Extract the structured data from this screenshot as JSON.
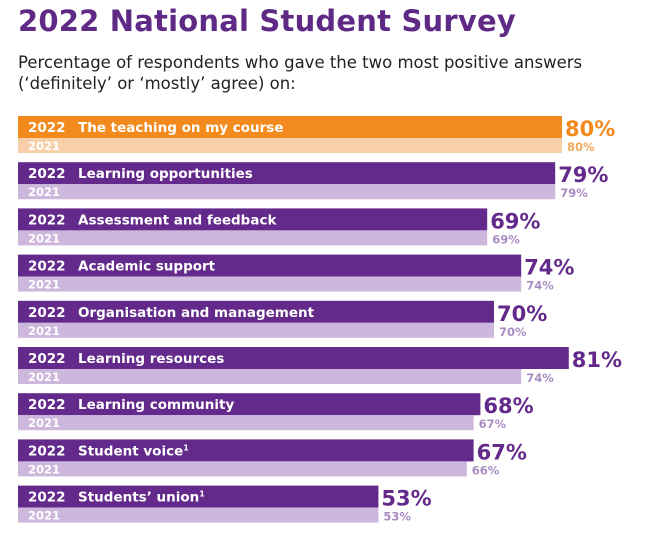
{
  "title": "2022 National Student Survey",
  "subtitle": "Percentage of respondents who gave the two most positive answers (‘definitely’ or ‘mostly’ agree) on:",
  "colors": {
    "bar_2022": "#632a8b",
    "bar_2021": "#cdb7dc",
    "label_2021": "#a98dc2",
    "highlight_2022": "#f28a1d",
    "highlight_2021": "#f7d0aa",
    "highlight_label_2021": "#f2a95c",
    "title": "#5f2a86"
  },
  "chart_data": {
    "type": "bar",
    "orientation": "horizontal",
    "xlim": [
      0,
      100
    ],
    "categories": [
      "The teaching on my course",
      "Learning opportunities",
      "Assessment and feedback",
      "Academic support",
      "Organisation and management",
      "Learning resources",
      "Learning community",
      "Student voice",
      "Students’ union"
    ],
    "category_superscripts": [
      "",
      "",
      "",
      "",
      "",
      "",
      "",
      "1",
      "1"
    ],
    "highlighted_index": 0,
    "series": [
      {
        "name": "2022",
        "values": [
          80,
          79,
          69,
          74,
          70,
          81,
          68,
          67,
          53
        ]
      },
      {
        "name": "2021",
        "values": [
          80,
          79,
          69,
          74,
          70,
          74,
          67,
          66,
          53
        ]
      }
    ],
    "value_suffix": "%"
  }
}
